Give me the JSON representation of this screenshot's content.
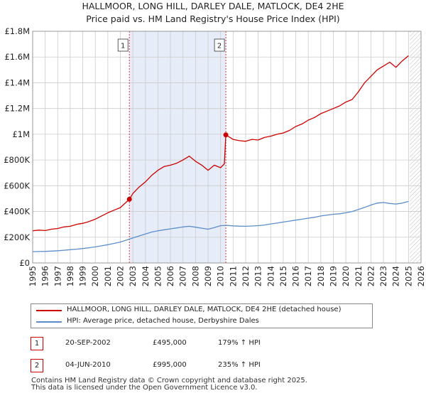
{
  "colors": {
    "property": "#cc0000",
    "hpi": "#5b8ec9",
    "shade": "#e6ecf8",
    "grid": "#cccccc",
    "future_hatch": "#bbbbbb"
  },
  "chart_data": {
    "type": "line",
    "title": "HALLMOOR, LONG HILL, DARLEY DALE, MATLOCK, DE4 2HE",
    "subtitle": "Price paid vs. HM Land Registry's House Price Index (HPI)",
    "xlim": [
      1995,
      2026
    ],
    "ylim": [
      0,
      1800000
    ],
    "y_ticks": [
      0,
      200000,
      400000,
      600000,
      800000,
      1000000,
      1200000,
      1400000,
      1600000,
      1800000
    ],
    "y_tick_labels": [
      "£0",
      "£200K",
      "£400K",
      "£600K",
      "£800K",
      "£1M",
      "£1.2M",
      "£1.4M",
      "£1.6M",
      "£1.8M"
    ],
    "x_ticks": [
      1995,
      1996,
      1997,
      1998,
      1999,
      2000,
      2001,
      2002,
      2003,
      2004,
      2005,
      2006,
      2007,
      2008,
      2009,
      2010,
      2011,
      2012,
      2013,
      2014,
      2015,
      2016,
      2017,
      2018,
      2019,
      2020,
      2021,
      2022,
      2023,
      2024,
      2025,
      2026
    ],
    "x_tick_labels": [
      "1995",
      "1996",
      "1997",
      "1998",
      "1999",
      "2000",
      "2001",
      "2002",
      "2003",
      "2004",
      "2005",
      "2006",
      "2007",
      "2008",
      "2009",
      "2010",
      "2011",
      "2012",
      "2013",
      "2014",
      "2015",
      "2016",
      "2017",
      "2018",
      "2019",
      "2020",
      "2021",
      "2022",
      "2023",
      "2024",
      "2025",
      "2026"
    ],
    "grid": true,
    "shaded_period": [
      2002.72,
      2010.42
    ],
    "future_from": 2025.1,
    "series": [
      {
        "name": "HALLMOOR, LONG HILL, DARLEY DALE, MATLOCK, DE4 2HE (detached house)",
        "color": "#cc0000",
        "x": [
          1995.0,
          1995.5,
          1996.0,
          1996.5,
          1997.0,
          1997.5,
          1998.0,
          1998.5,
          1999.0,
          1999.5,
          2000.0,
          2000.5,
          2001.0,
          2001.5,
          2002.0,
          2002.72,
          2003.0,
          2003.5,
          2004.0,
          2004.5,
          2005.0,
          2005.5,
          2006.0,
          2006.5,
          2007.0,
          2007.5,
          2008.0,
          2008.5,
          2009.0,
          2009.5,
          2010.0,
          2010.3,
          2010.42,
          2011.0,
          2011.5,
          2012.0,
          2012.5,
          2013.0,
          2013.5,
          2014.0,
          2014.5,
          2015.0,
          2015.5,
          2016.0,
          2016.5,
          2017.0,
          2017.5,
          2018.0,
          2018.5,
          2019.0,
          2019.5,
          2020.0,
          2020.5,
          2021.0,
          2021.5,
          2022.0,
          2022.5,
          2023.0,
          2023.5,
          2024.0,
          2024.5,
          2025.0
        ],
        "values": [
          250000,
          255000,
          252000,
          262000,
          268000,
          280000,
          285000,
          300000,
          308000,
          322000,
          340000,
          365000,
          390000,
          410000,
          430000,
          495000,
          540000,
          590000,
          630000,
          680000,
          720000,
          750000,
          760000,
          775000,
          800000,
          830000,
          790000,
          760000,
          720000,
          760000,
          740000,
          770000,
          995000,
          960000,
          950000,
          945000,
          960000,
          955000,
          975000,
          985000,
          1000000,
          1010000,
          1030000,
          1060000,
          1080000,
          1110000,
          1130000,
          1160000,
          1180000,
          1200000,
          1220000,
          1250000,
          1270000,
          1330000,
          1400000,
          1450000,
          1500000,
          1530000,
          1560000,
          1520000,
          1570000,
          1610000
        ]
      },
      {
        "name": "HPI: Average price, detached house, Derbyshire Dales",
        "color": "#5b8ec9",
        "x": [
          1995.0,
          1995.5,
          1996.0,
          1996.5,
          1997.0,
          1997.5,
          1998.0,
          1998.5,
          1999.0,
          1999.5,
          2000.0,
          2000.5,
          2001.0,
          2001.5,
          2002.0,
          2002.5,
          2003.0,
          2003.5,
          2004.0,
          2004.5,
          2005.0,
          2005.5,
          2006.0,
          2006.5,
          2007.0,
          2007.5,
          2008.0,
          2008.5,
          2009.0,
          2009.5,
          2010.0,
          2010.5,
          2011.0,
          2011.5,
          2012.0,
          2012.5,
          2013.0,
          2013.5,
          2014.0,
          2014.5,
          2015.0,
          2015.5,
          2016.0,
          2016.5,
          2017.0,
          2017.5,
          2018.0,
          2018.5,
          2019.0,
          2019.5,
          2020.0,
          2020.5,
          2021.0,
          2021.5,
          2022.0,
          2022.5,
          2023.0,
          2023.5,
          2024.0,
          2024.5,
          2025.0
        ],
        "values": [
          88000,
          89000,
          90000,
          92000,
          95000,
          99000,
          103000,
          107000,
          112000,
          118000,
          125000,
          133000,
          142000,
          152000,
          163000,
          178000,
          195000,
          210000,
          225000,
          240000,
          250000,
          258000,
          265000,
          272000,
          280000,
          285000,
          278000,
          270000,
          262000,
          275000,
          290000,
          292000,
          288000,
          286000,
          285000,
          287000,
          290000,
          295000,
          303000,
          310000,
          318000,
          325000,
          333000,
          340000,
          348000,
          355000,
          365000,
          372000,
          378000,
          382000,
          390000,
          400000,
          415000,
          432000,
          450000,
          465000,
          470000,
          462000,
          458000,
          465000,
          478000
        ]
      }
    ],
    "markers": [
      {
        "label": "1",
        "x": 2002.72,
        "y": 495000
      },
      {
        "label": "2",
        "x": 2010.42,
        "y": 995000
      }
    ]
  },
  "legend": {
    "property_label": "HALLMOOR, LONG HILL, DARLEY DALE, MATLOCK, DE4 2HE (detached house)",
    "hpi_label": "HPI: Average price, detached house, Derbyshire Dales"
  },
  "transactions": [
    {
      "badge": "1",
      "date": "20-SEP-2002",
      "price": "£495,000",
      "hpi": "179% ↑ HPI"
    },
    {
      "badge": "2",
      "date": "04-JUN-2010",
      "price": "£995,000",
      "hpi": "235% ↑ HPI"
    }
  ],
  "footer": {
    "line1": "Contains HM Land Registry data © Crown copyright and database right 2025.",
    "line2": "This data is licensed under the Open Government Licence v3.0."
  }
}
